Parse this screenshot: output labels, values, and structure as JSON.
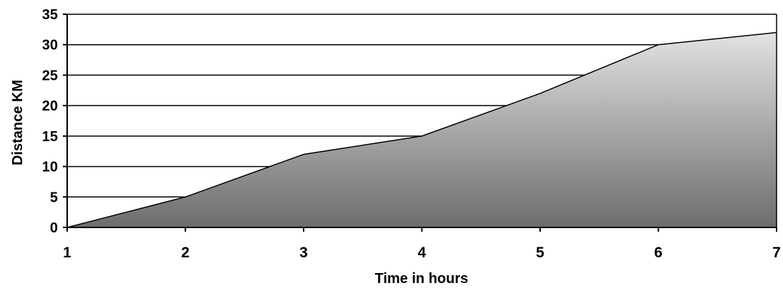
{
  "chart_data": {
    "type": "area",
    "title": "",
    "xlabel": "Time in  hours",
    "ylabel": "Distance KM",
    "x": [
      1,
      2,
      3,
      4,
      5,
      6,
      7
    ],
    "series": [
      {
        "values": [
          0,
          5,
          12,
          15,
          22,
          30,
          32
        ]
      }
    ],
    "xlim": [
      1,
      7
    ],
    "ylim": [
      0,
      35
    ],
    "xticks": [
      "1",
      "2",
      "3",
      "4",
      "5",
      "6",
      "7"
    ],
    "yticks": [
      "0",
      "5",
      "10",
      "15",
      "20",
      "25",
      "30",
      "35"
    ],
    "grid": "horizontal",
    "legend": "none",
    "colors": {
      "fill_top": "#e2e2e2",
      "fill_bottom": "#6d6d6d",
      "line": "#000000",
      "grid": "#000000"
    }
  }
}
